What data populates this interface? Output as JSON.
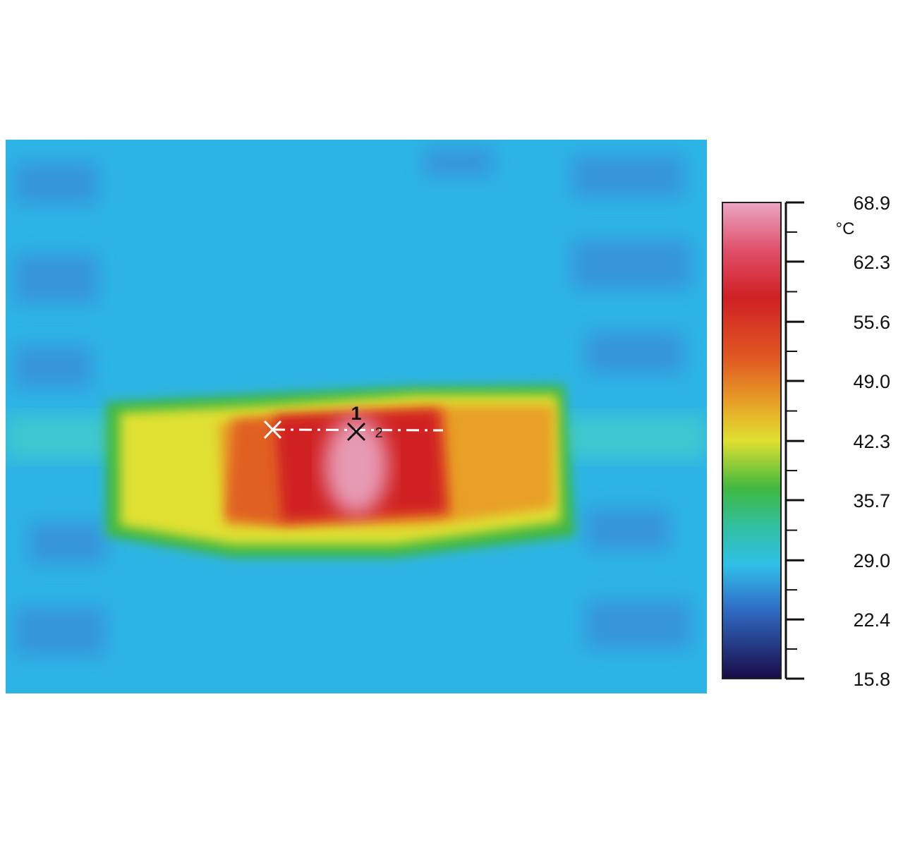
{
  "colorbar": {
    "unit": "°C",
    "range": [
      15.8,
      68.9
    ],
    "ticks": [
      68.9,
      62.3,
      55.6,
      {
        "value": 49,
        "label": "49.0"
      },
      42.3,
      35.7,
      {
        "value": 29,
        "label": "29.0"
      },
      22.4,
      15.8
    ]
  },
  "markers": [
    "1",
    "2"
  ]
}
